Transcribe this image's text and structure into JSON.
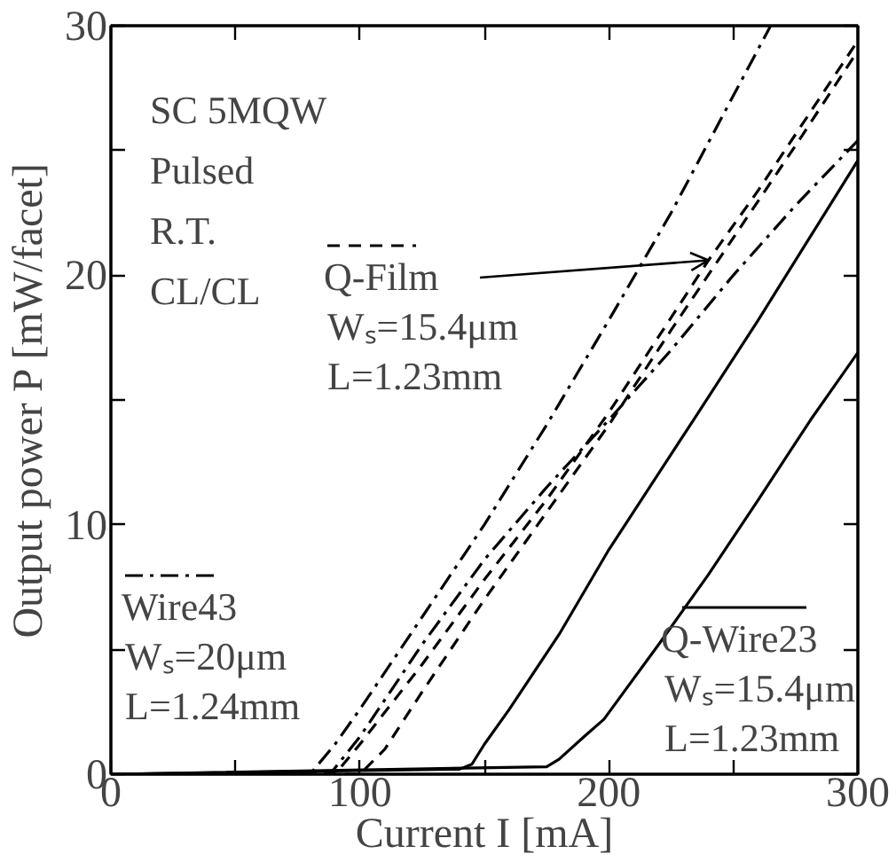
{
  "chart_data": {
    "type": "line",
    "xlabel": "Current I [mA]",
    "ylabel": "Output power P [mW/facet]",
    "xlim": [
      0,
      300
    ],
    "ylim": [
      0,
      30
    ],
    "xticks": [
      0,
      {
        "value": 50,
        "label": null
      },
      100,
      {
        "value": 150,
        "label": null
      },
      200,
      {
        "value": 250,
        "label": null
      },
      300
    ],
    "yticks": [
      0,
      {
        "value": 5,
        "label": null
      },
      10,
      {
        "value": 15,
        "label": null
      },
      20,
      {
        "value": 25,
        "label": null
      },
      30
    ],
    "grid": false,
    "legend": "bottom left",
    "marker": "none",
    "series": [
      {
        "name": "Wire43",
        "color": "#000000",
        "line_style": "dashdot",
        "x": [
          0,
          80,
          90,
          100,
          125,
          150,
          175,
          200,
          225,
          250,
          265
        ],
        "values": [
          0,
          0,
          1.2,
          2.6,
          6.3,
          10.0,
          14.0,
          18.2,
          22.5,
          27.2,
          30
        ]
      },
      {
        "color": "#000000",
        "line_style": "dashdot",
        "x": [
          0,
          88,
          100,
          125,
          150,
          175,
          200,
          225,
          250,
          275,
          300
        ],
        "values": [
          0,
          0,
          1.5,
          5.2,
          8.6,
          11.5,
          14.2,
          17.0,
          20.0,
          22.8,
          25.4
        ]
      },
      {
        "name": "Q-Film",
        "color": "#000000",
        "line_style": "dashed",
        "x": [
          0,
          90,
          100,
          125,
          150,
          175,
          200,
          225,
          240,
          260,
          280,
          300
        ],
        "values": [
          0,
          0,
          1.2,
          4.4,
          7.8,
          11.0,
          14.5,
          18.3,
          20.6,
          23.4,
          26.4,
          29.4
        ]
      },
      {
        "color": "#000000",
        "line_style": "dashed",
        "x": [
          0,
          100,
          110,
          125,
          150,
          175,
          200,
          225,
          250,
          275,
          300
        ],
        "values": [
          0,
          0,
          1.0,
          3.3,
          7.0,
          10.5,
          14.0,
          17.8,
          21.5,
          25.2,
          29.0
        ]
      },
      {
        "name": "Q-Wire23",
        "color": "#000000",
        "line_style": "solid",
        "x": [
          0,
          140,
          145,
          150,
          160,
          180,
          200,
          234,
          260,
          280,
          300
        ],
        "values": [
          0,
          0.2,
          0.4,
          1.2,
          2.6,
          5.6,
          9.0,
          14.2,
          18.2,
          21.4,
          24.6
        ]
      },
      {
        "color": "#000000",
        "line_style": "solid",
        "x": [
          0,
          175,
          180,
          190,
          198,
          220,
          240,
          260,
          281,
          300
        ],
        "values": [
          0,
          0.3,
          0.6,
          1.5,
          2.2,
          5.2,
          8.0,
          11.0,
          14.2,
          16.9
        ]
      }
    ],
    "annotations": [
      "SC 5MQW",
      "Pulsed",
      "R.T.",
      "CL/CL",
      {
        "text": "Wₛ=15.4μm",
        "x": 240,
        "y": 20.6
      },
      "L=1.23mm",
      "Wₛ=20μm",
      "L=1.24mm",
      "Wₛ=15.4μm",
      "L=1.23mm"
    ]
  }
}
